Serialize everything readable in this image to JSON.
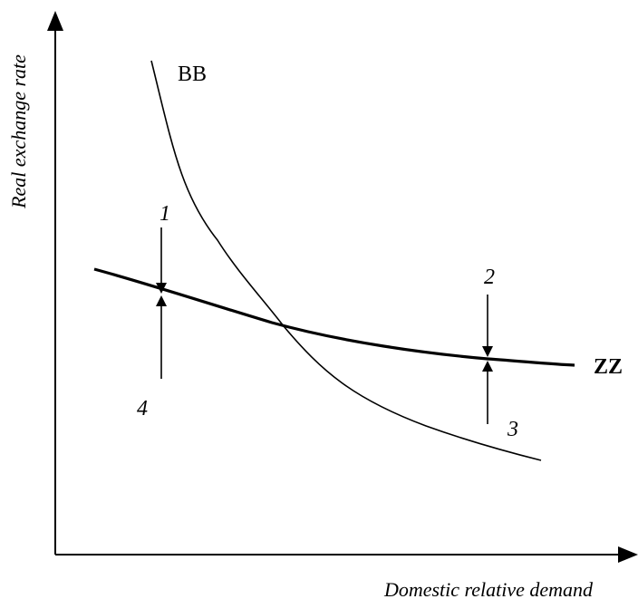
{
  "axes": {
    "y_label": "Real exchange rate",
    "x_label": "Domestic relative demand"
  },
  "curves": {
    "bb": {
      "label": "BB"
    },
    "zz": {
      "label": "ZZ"
    }
  },
  "points": {
    "p1": "1",
    "p2": "2",
    "p3": "3",
    "p4": "4"
  }
}
